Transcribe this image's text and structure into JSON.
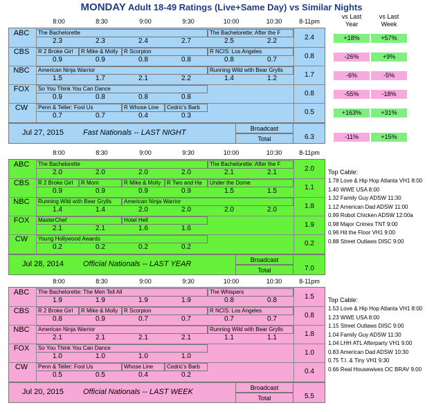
{
  "title": {
    "day": "MONDAY",
    "rest": " Adult 18-49 Ratings (Live+Same Day) vs Similar Nights"
  },
  "columns": {
    "vs_last_year": "vs Last Year",
    "vs_last_week": "vs Last Week",
    "vs_last": "vs Last",
    "year": "Year",
    "week": "Week"
  },
  "times": [
    "8:00",
    "8:30",
    "9:00",
    "9:30",
    "10:00",
    "10:30",
    "8-11pm"
  ],
  "colors": {
    "blue": "#a8d4f5",
    "green": "#66f23a",
    "pink": "#f7a8d6",
    "pos": "#7ff07f",
    "neg": "#f6aadd",
    "title": "#1f3c8c"
  },
  "blocks": [
    {
      "color": "blue",
      "rows": [
        {
          "net": "ABC",
          "progs": [
            [
              "The Bachelorette",
              0,
              4
            ],
            [
              "The Bachelorette: After the F",
              4,
              6
            ]
          ],
          "vals": [
            "2.3",
            "2.3",
            "2.4",
            "2.7",
            "2.5",
            "2.2"
          ],
          "total": "2.4",
          "yr": "+18%",
          "wk": "+57%"
        },
        {
          "net": "CBS",
          "progs": [
            [
              "R 2 Broke Girl",
              0,
              1
            ],
            [
              "R Mike & Molly",
              1,
              2
            ],
            [
              "R Scorpion",
              2,
              4
            ],
            [
              "R NCIS: Los Angeles",
              4,
              6
            ]
          ],
          "vals": [
            "0.9",
            "0.9",
            "0.8",
            "0.8",
            "0.8",
            "0.7"
          ],
          "total": "0.8",
          "yr": "-26%",
          "wk": "+9%"
        },
        {
          "net": "NBC",
          "progs": [
            [
              "American Ninja Warrior",
              0,
              4
            ],
            [
              "Running Wild with Bear Grylls",
              4,
              6
            ]
          ],
          "vals": [
            "1.5",
            "1.7",
            "2.1",
            "2.2",
            "1.4",
            "1.2"
          ],
          "total": "1.7",
          "yr": "-6%",
          "wk": "-5%"
        },
        {
          "net": "FOX",
          "progs": [
            [
              "So You Think You Can Dance",
              0,
              4
            ]
          ],
          "vals": [
            "0.9",
            "0.8",
            "0.8",
            "0.8",
            "",
            ""
          ],
          "total": "0.8",
          "yr": "-55%",
          "wk": "-18%"
        },
        {
          "net": "CW",
          "progs": [
            [
              "Penn & Teller: Fool Us",
              0,
              2
            ],
            [
              "R Whose Line",
              2,
              3
            ],
            [
              "Cedric's Barb",
              3,
              4
            ]
          ],
          "vals": [
            "0.7",
            "0.7",
            "0.4",
            "0.3",
            "",
            ""
          ],
          "total": "0.5",
          "yr": "+163%",
          "wk": "+31%"
        }
      ],
      "date": "Jul 27, 2015",
      "label": "Fast Nationals -- LAST NIGHT",
      "bc1": "Broadcast",
      "bc2": "Total",
      "bc_total": "6.3",
      "bc_yr": "-11%",
      "bc_wk": "+15%"
    },
    {
      "color": "green",
      "rows": [
        {
          "net": "ABC",
          "progs": [
            [
              "The Bachelorette",
              0,
              4
            ],
            [
              "The Bachelorette: After the F",
              4,
              6
            ]
          ],
          "vals": [
            "2.0",
            "2.0",
            "2.0",
            "2.0",
            "2.1",
            "2.1"
          ],
          "total": "2.0"
        },
        {
          "net": "CBS",
          "progs": [
            [
              "R 2 Broke Girl",
              0,
              1
            ],
            [
              "R Mom",
              1,
              2
            ],
            [
              "R Mike & Molly",
              2,
              3
            ],
            [
              "R Two and Ha",
              3,
              4
            ],
            [
              "Under the Dome",
              4,
              6
            ]
          ],
          "vals": [
            "0.9",
            "0.9",
            "0.9",
            "0.9",
            "1.5",
            "1.5"
          ],
          "total": "1.1"
        },
        {
          "net": "NBC",
          "progs": [
            [
              "Running Wild with Bear Grylls",
              0,
              2
            ],
            [
              "American Ninja Warrior",
              2,
              6
            ]
          ],
          "vals": [
            "1.4",
            "1.4",
            "2.0",
            "2.0",
            "2.0",
            "2.0"
          ],
          "total": "1.8"
        },
        {
          "net": "FOX",
          "progs": [
            [
              "MasterChef",
              0,
              2
            ],
            [
              "Hotel Hell",
              2,
              4
            ]
          ],
          "vals": [
            "2.1",
            "2.1",
            "1.6",
            "1.6",
            "",
            ""
          ],
          "total": "1.9"
        },
        {
          "net": "CW",
          "progs": [
            [
              "Young Hollywood Awards",
              0,
              4
            ]
          ],
          "vals": [
            "0.2",
            "0.2",
            "0.2",
            "0.2",
            "",
            ""
          ],
          "total": "0.2"
        }
      ],
      "date": "Jul 28, 2014",
      "label": "Official Nationals -- LAST YEAR",
      "bc1": "Broadcast",
      "bc2": "Total",
      "bc_total": "7.0",
      "cable_title": "Top Cable:",
      "cable": [
        "1.78 Love & Hip Hop Atlanta VH1 8:00",
        "1.40 WWE USA 8:00",
        "1.32 Family Guy ADSW 11:30",
        "1.12 American Dad ADSW 11:00",
        "0.99 Robot Chicken ADSW 12:00a",
        "0.98 Major Crimes TNT 9:00",
        "0.96 Hit the Floor VH1 9:00",
        "0.88 Street Outlaws DISC 9:00"
      ]
    },
    {
      "color": "pink",
      "rows": [
        {
          "net": "ABC",
          "progs": [
            [
              "The Bachelorette: The Men Tell All",
              0,
              4
            ],
            [
              "The Whispers",
              4,
              6
            ]
          ],
          "vals": [
            "1.9",
            "1.9",
            "1.9",
            "1.9",
            "0.8",
            "0.8"
          ],
          "total": "1.5"
        },
        {
          "net": "CBS",
          "progs": [
            [
              "R 2 Broke Girl",
              0,
              1
            ],
            [
              "R Mike & Molly",
              1,
              2
            ],
            [
              "R Scorpion",
              2,
              4
            ],
            [
              "R NCIS: Los Angeles",
              4,
              6
            ]
          ],
          "vals": [
            "0.8",
            "0.9",
            "0.7",
            "0.7",
            "0.7",
            "0.7"
          ],
          "total": "0.8"
        },
        {
          "net": "NBC",
          "progs": [
            [
              "American Ninja Warrior",
              0,
              4
            ],
            [
              "Running Wild with Bear Grylls",
              4,
              6
            ]
          ],
          "vals": [
            "2.1",
            "2.1",
            "2.1",
            "2.1",
            "1.1",
            "1.1"
          ],
          "total": "1.8"
        },
        {
          "net": "FOX",
          "progs": [
            [
              "So You Think You Can Dance",
              0,
              4
            ]
          ],
          "vals": [
            "1.0",
            "1.0",
            "1.0",
            "1.0",
            "",
            ""
          ],
          "total": "1.0"
        },
        {
          "net": "CW",
          "progs": [
            [
              "Penn & Teller: Fool Us",
              0,
              2
            ],
            [
              "Whose Line",
              2,
              3
            ],
            [
              "Cedric's Barb",
              3,
              4
            ]
          ],
          "vals": [
            "0.5",
            "0.5",
            "0.4",
            "0.2",
            "",
            ""
          ],
          "total": "0.4"
        }
      ],
      "date": "Jul 20, 2015",
      "label": "Official Nationals -- LAST WEEK",
      "bc1": "Broadcast",
      "bc2": "Total",
      "bc_total": "5.5",
      "cable_title": "Top Cable:",
      "cable": [
        "1.53 Love & Hip Hop Atlanta VH1 8:00",
        "1.23 WWE USA 8:00",
        "1.15 Street Outlaws DISC 9:00",
        "1.04 Family Guy ADSW 11:30",
        "1.04 LHH ATL Afterparty VH1 9:00",
        "0.83 American Dad ADSW 10:30",
        "0.75 T.I. & Tiny VH1 9:30",
        "0.66 Real Housewives OC BRAV 9:00"
      ]
    }
  ]
}
